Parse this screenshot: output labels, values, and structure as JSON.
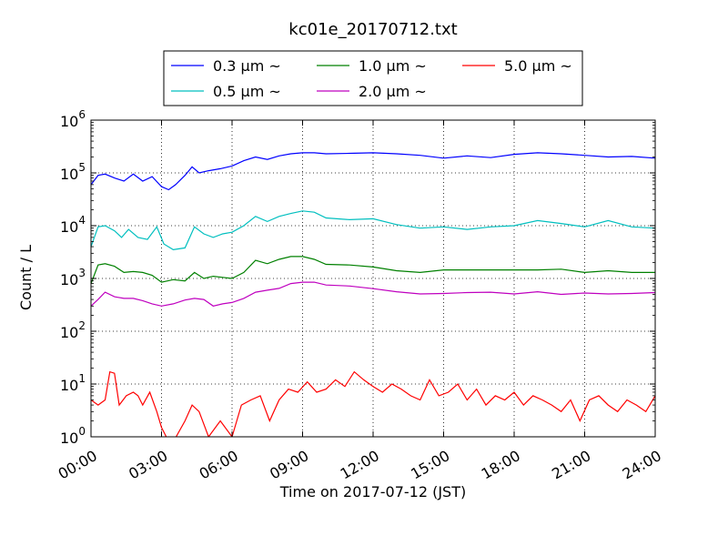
{
  "chart_data": {
    "type": "line",
    "title": "kc01e_20170712.txt",
    "xlabel": "Time on 2017-07-12 (JST)",
    "ylabel": "Count / L",
    "yscale": "log",
    "ylim": [
      1,
      1000000
    ],
    "xlim": [
      0,
      24
    ],
    "grid": true,
    "legend_placement": "top, above plot",
    "x_ticks": [
      {
        "value": 0,
        "label": "00:00"
      },
      {
        "value": 3,
        "label": "03:00"
      },
      {
        "value": 6,
        "label": "06:00"
      },
      {
        "value": 9,
        "label": "09:00"
      },
      {
        "value": 12,
        "label": "12:00"
      },
      {
        "value": 15,
        "label": "15:00"
      },
      {
        "value": 18,
        "label": "18:00"
      },
      {
        "value": 21,
        "label": "21:00"
      },
      {
        "value": 24,
        "label": "24:00"
      }
    ],
    "y_ticks": [
      {
        "value": 1,
        "base": "10",
        "exp": "0"
      },
      {
        "value": 10,
        "base": "10",
        "exp": "1"
      },
      {
        "value": 100,
        "base": "10",
        "exp": "2"
      },
      {
        "value": 1000,
        "base": "10",
        "exp": "3"
      },
      {
        "value": 10000,
        "base": "10",
        "exp": "4"
      },
      {
        "value": 100000,
        "base": "10",
        "exp": "5"
      },
      {
        "value": 1000000,
        "base": "10",
        "exp": "6"
      }
    ],
    "series": [
      {
        "name": "0.3 μm ~",
        "color": "#0000ff",
        "points": [
          [
            0,
            60000
          ],
          [
            0.3,
            90000
          ],
          [
            0.6,
            95000
          ],
          [
            1,
            80000
          ],
          [
            1.4,
            70000
          ],
          [
            1.8,
            95000
          ],
          [
            2.2,
            70000
          ],
          [
            2.6,
            85000
          ],
          [
            3,
            55000
          ],
          [
            3.3,
            48000
          ],
          [
            3.6,
            60000
          ],
          [
            4,
            90000
          ],
          [
            4.3,
            130000
          ],
          [
            4.6,
            100000
          ],
          [
            5,
            110000
          ],
          [
            5.5,
            120000
          ],
          [
            6,
            135000
          ],
          [
            6.5,
            170000
          ],
          [
            7,
            200000
          ],
          [
            7.5,
            180000
          ],
          [
            8,
            210000
          ],
          [
            8.5,
            230000
          ],
          [
            9,
            240000
          ],
          [
            9.5,
            240000
          ],
          [
            10,
            230000
          ],
          [
            11,
            235000
          ],
          [
            12,
            240000
          ],
          [
            13,
            230000
          ],
          [
            14,
            215000
          ],
          [
            15,
            190000
          ],
          [
            16,
            210000
          ],
          [
            17,
            195000
          ],
          [
            18,
            225000
          ],
          [
            19,
            240000
          ],
          [
            20,
            230000
          ],
          [
            21,
            215000
          ],
          [
            22,
            200000
          ],
          [
            23,
            205000
          ],
          [
            24,
            190000
          ]
        ]
      },
      {
        "name": "0.5 μm ~",
        "color": "#00bfbf",
        "points": [
          [
            0,
            4000
          ],
          [
            0.3,
            9500
          ],
          [
            0.6,
            10000
          ],
          [
            1,
            8000
          ],
          [
            1.3,
            6000
          ],
          [
            1.6,
            8500
          ],
          [
            2,
            6000
          ],
          [
            2.4,
            5500
          ],
          [
            2.8,
            9500
          ],
          [
            3.1,
            4500
          ],
          [
            3.5,
            3500
          ],
          [
            4,
            3800
          ],
          [
            4.4,
            9500
          ],
          [
            4.8,
            7000
          ],
          [
            5.2,
            6000
          ],
          [
            5.6,
            7000
          ],
          [
            6,
            7500
          ],
          [
            6.5,
            10000
          ],
          [
            7,
            15000
          ],
          [
            7.5,
            12000
          ],
          [
            8,
            15000
          ],
          [
            8.5,
            17000
          ],
          [
            9,
            19000
          ],
          [
            9.5,
            18000
          ],
          [
            10,
            14000
          ],
          [
            11,
            13000
          ],
          [
            12,
            13500
          ],
          [
            13,
            10500
          ],
          [
            14,
            9000
          ],
          [
            15,
            9500
          ],
          [
            16,
            8500
          ],
          [
            17,
            9500
          ],
          [
            18,
            10000
          ],
          [
            19,
            12500
          ],
          [
            20,
            11000
          ],
          [
            21,
            9500
          ],
          [
            22,
            12500
          ],
          [
            23,
            9500
          ],
          [
            24,
            9000
          ]
        ]
      },
      {
        "name": "1.0 μm ~",
        "color": "#008000",
        "points": [
          [
            0,
            800
          ],
          [
            0.3,
            1800
          ],
          [
            0.6,
            1900
          ],
          [
            1,
            1700
          ],
          [
            1.4,
            1300
          ],
          [
            1.8,
            1350
          ],
          [
            2.2,
            1300
          ],
          [
            2.6,
            1150
          ],
          [
            3,
            850
          ],
          [
            3.5,
            950
          ],
          [
            4,
            900
          ],
          [
            4.4,
            1300
          ],
          [
            4.8,
            1000
          ],
          [
            5.2,
            1100
          ],
          [
            5.6,
            1050
          ],
          [
            6,
            1000
          ],
          [
            6.5,
            1300
          ],
          [
            7,
            2200
          ],
          [
            7.5,
            1900
          ],
          [
            8,
            2300
          ],
          [
            8.5,
            2600
          ],
          [
            9,
            2600
          ],
          [
            9.5,
            2300
          ],
          [
            10,
            1850
          ],
          [
            11,
            1800
          ],
          [
            12,
            1650
          ],
          [
            13,
            1400
          ],
          [
            14,
            1300
          ],
          [
            15,
            1450
          ],
          [
            16,
            1450
          ],
          [
            17,
            1450
          ],
          [
            18,
            1450
          ],
          [
            19,
            1450
          ],
          [
            20,
            1500
          ],
          [
            21,
            1300
          ],
          [
            22,
            1400
          ],
          [
            23,
            1300
          ],
          [
            24,
            1300
          ]
        ]
      },
      {
        "name": "2.0 μm ~",
        "color": "#bf00bf",
        "points": [
          [
            0,
            300
          ],
          [
            0.3,
            400
          ],
          [
            0.6,
            550
          ],
          [
            1,
            450
          ],
          [
            1.4,
            420
          ],
          [
            1.8,
            420
          ],
          [
            2.2,
            380
          ],
          [
            2.6,
            330
          ],
          [
            3,
            300
          ],
          [
            3.5,
            330
          ],
          [
            4,
            390
          ],
          [
            4.4,
            420
          ],
          [
            4.8,
            400
          ],
          [
            5.2,
            300
          ],
          [
            5.6,
            330
          ],
          [
            6,
            350
          ],
          [
            6.5,
            420
          ],
          [
            7,
            550
          ],
          [
            7.5,
            600
          ],
          [
            8,
            650
          ],
          [
            8.5,
            800
          ],
          [
            9,
            850
          ],
          [
            9.5,
            850
          ],
          [
            10,
            750
          ],
          [
            11,
            720
          ],
          [
            12,
            640
          ],
          [
            13,
            560
          ],
          [
            14,
            510
          ],
          [
            15,
            520
          ],
          [
            16,
            540
          ],
          [
            17,
            550
          ],
          [
            18,
            510
          ],
          [
            19,
            560
          ],
          [
            20,
            500
          ],
          [
            21,
            530
          ],
          [
            22,
            510
          ],
          [
            23,
            520
          ],
          [
            24,
            540
          ]
        ]
      },
      {
        "name": "5.0 μm ~",
        "color": "#ff0000",
        "points": [
          [
            0,
            5
          ],
          [
            0.3,
            4
          ],
          [
            0.6,
            5
          ],
          [
            0.8,
            17
          ],
          [
            1,
            16
          ],
          [
            1.2,
            4
          ],
          [
            1.5,
            6
          ],
          [
            1.8,
            7
          ],
          [
            2,
            6
          ],
          [
            2.2,
            4
          ],
          [
            2.5,
            7
          ],
          [
            2.8,
            3
          ],
          [
            3,
            1.5
          ],
          [
            3.2,
            1
          ],
          [
            3.5,
            0.8
          ],
          [
            4,
            2
          ],
          [
            4.3,
            4
          ],
          [
            4.6,
            3
          ],
          [
            5,
            1
          ],
          [
            5.5,
            2
          ],
          [
            6,
            1
          ],
          [
            6.4,
            4
          ],
          [
            6.8,
            5
          ],
          [
            7.2,
            6
          ],
          [
            7.6,
            2
          ],
          [
            8,
            5
          ],
          [
            8.4,
            8
          ],
          [
            8.8,
            7
          ],
          [
            9.2,
            11
          ],
          [
            9.6,
            7
          ],
          [
            10,
            8
          ],
          [
            10.4,
            12
          ],
          [
            10.8,
            9
          ],
          [
            11.2,
            17
          ],
          [
            11.6,
            12
          ],
          [
            12,
            9
          ],
          [
            12.4,
            7
          ],
          [
            12.8,
            10
          ],
          [
            13.2,
            8
          ],
          [
            13.6,
            6
          ],
          [
            14,
            5
          ],
          [
            14.4,
            12
          ],
          [
            14.8,
            6
          ],
          [
            15.2,
            7
          ],
          [
            15.6,
            10
          ],
          [
            16,
            5
          ],
          [
            16.4,
            8
          ],
          [
            16.8,
            4
          ],
          [
            17.2,
            6
          ],
          [
            17.6,
            5
          ],
          [
            18,
            7
          ],
          [
            18.4,
            4
          ],
          [
            18.8,
            6
          ],
          [
            19.2,
            5
          ],
          [
            19.6,
            4
          ],
          [
            20,
            3
          ],
          [
            20.4,
            5
          ],
          [
            20.8,
            2
          ],
          [
            21.2,
            5
          ],
          [
            21.6,
            6
          ],
          [
            22,
            4
          ],
          [
            22.4,
            3
          ],
          [
            22.8,
            5
          ],
          [
            23.2,
            4
          ],
          [
            23.6,
            3
          ],
          [
            24,
            6
          ]
        ]
      }
    ]
  }
}
